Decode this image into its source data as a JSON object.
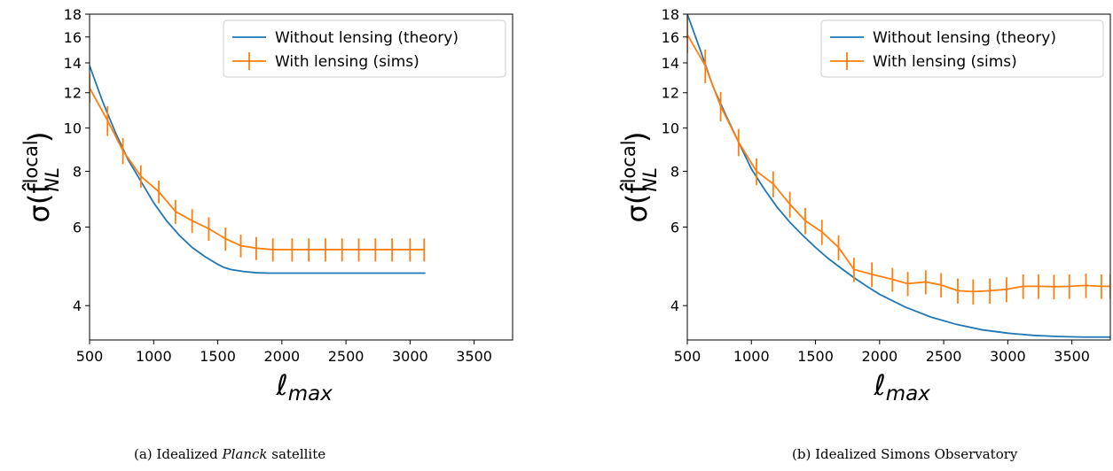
{
  "chart_data": [
    {
      "type": "line",
      "panel": "a",
      "caption_prefix": "(a) Idealized ",
      "caption_em": "Planck",
      "caption_suffix": " satellite",
      "xlabel": "ℓ",
      "xlabel_sub": "max",
      "ylabel": "σ(f̂",
      "ylabel_sup": "local",
      "ylabel_sub": "NL",
      "ylabel_close": ")",
      "xlim": [
        500,
        3800
      ],
      "ylim": [
        3.35,
        18
      ],
      "yscale": "log",
      "xticks": [
        500,
        1000,
        1500,
        2000,
        2500,
        3000,
        3500
      ],
      "yticks": [
        4,
        6,
        8,
        10,
        12,
        14,
        16,
        18
      ],
      "legend": "top-right",
      "series": [
        {
          "name": "Without lensing (theory)",
          "color": "#1f77b4",
          "x": [
            500,
            600,
            700,
            800,
            900,
            1000,
            1100,
            1200,
            1300,
            1400,
            1500,
            1550,
            1600,
            1700,
            1800,
            1900,
            2000,
            2200,
            2400,
            2600,
            2800,
            3000,
            3120
          ],
          "y": [
            13.8,
            11.5,
            9.8,
            8.5,
            7.6,
            6.8,
            6.2,
            5.75,
            5.4,
            5.15,
            4.95,
            4.87,
            4.82,
            4.77,
            4.74,
            4.73,
            4.73,
            4.73,
            4.73,
            4.73,
            4.73,
            4.73,
            4.73
          ]
        },
        {
          "name": "With lensing (sims)",
          "color": "#ff7f0e",
          "x": [
            500,
            640,
            760,
            900,
            1040,
            1170,
            1300,
            1430,
            1560,
            1680,
            1800,
            1930,
            2080,
            2210,
            2340,
            2470,
            2600,
            2730,
            2860,
            3000,
            3110
          ],
          "y": [
            12.3,
            10.4,
            8.9,
            7.8,
            7.2,
            6.5,
            6.2,
            5.95,
            5.65,
            5.45,
            5.38,
            5.34,
            5.34,
            5.34,
            5.34,
            5.34,
            5.34,
            5.34,
            5.34,
            5.34,
            5.34
          ],
          "yerr": [
            0.9,
            0.8,
            0.6,
            0.45,
            0.42,
            0.4,
            0.38,
            0.36,
            0.34,
            0.32,
            0.32,
            0.32,
            0.32,
            0.32,
            0.32,
            0.32,
            0.32,
            0.32,
            0.32,
            0.32,
            0.32
          ]
        }
      ]
    },
    {
      "type": "line",
      "panel": "b",
      "caption_prefix": "(b) Idealized Simons Observatory",
      "caption_em": "",
      "caption_suffix": "",
      "xlabel": "ℓ",
      "xlabel_sub": "max",
      "ylabel": "σ(f̂",
      "ylabel_sup": "local",
      "ylabel_sub": "NL",
      "ylabel_close": ")",
      "xlim": [
        500,
        3800
      ],
      "ylim": [
        3.35,
        18
      ],
      "yscale": "log",
      "xticks": [
        500,
        1000,
        1500,
        2000,
        2500,
        3000,
        3500
      ],
      "yticks": [
        4,
        6,
        8,
        10,
        12,
        14,
        16,
        18
      ],
      "legend": "top-right",
      "series": [
        {
          "name": "Without lensing (theory)",
          "color": "#1f77b4",
          "x": [
            500,
            600,
            700,
            800,
            900,
            1000,
            1100,
            1200,
            1300,
            1400,
            1500,
            1600,
            1700,
            1800,
            1900,
            2000,
            2200,
            2400,
            2600,
            2800,
            3000,
            3200,
            3400,
            3600,
            3800
          ],
          "y": [
            18.0,
            15.0,
            12.4,
            10.7,
            9.3,
            8.1,
            7.3,
            6.65,
            6.15,
            5.75,
            5.4,
            5.1,
            4.85,
            4.62,
            4.42,
            4.24,
            3.97,
            3.77,
            3.63,
            3.53,
            3.47,
            3.43,
            3.41,
            3.4,
            3.4
          ]
        },
        {
          "name": "With lensing (sims)",
          "color": "#ff7f0e",
          "x": [
            500,
            640,
            760,
            900,
            1040,
            1170,
            1300,
            1420,
            1550,
            1680,
            1800,
            1940,
            2100,
            2220,
            2360,
            2480,
            2610,
            2730,
            2860,
            2990,
            3120,
            3240,
            3360,
            3480,
            3610,
            3730,
            3800
          ],
          "y": [
            16.2,
            13.8,
            11.2,
            9.3,
            8.0,
            7.5,
            6.75,
            6.2,
            5.85,
            5.4,
            4.82,
            4.7,
            4.58,
            4.48,
            4.52,
            4.45,
            4.32,
            4.3,
            4.32,
            4.35,
            4.42,
            4.42,
            4.41,
            4.42,
            4.44,
            4.42,
            4.42
          ],
          "yerr": [
            1.5,
            1.2,
            0.85,
            0.65,
            0.55,
            0.5,
            0.45,
            0.42,
            0.38,
            0.35,
            0.3,
            0.3,
            0.28,
            0.28,
            0.28,
            0.28,
            0.28,
            0.28,
            0.28,
            0.28,
            0.28,
            0.28,
            0.28,
            0.28,
            0.28,
            0.28,
            0.28
          ]
        }
      ]
    }
  ]
}
